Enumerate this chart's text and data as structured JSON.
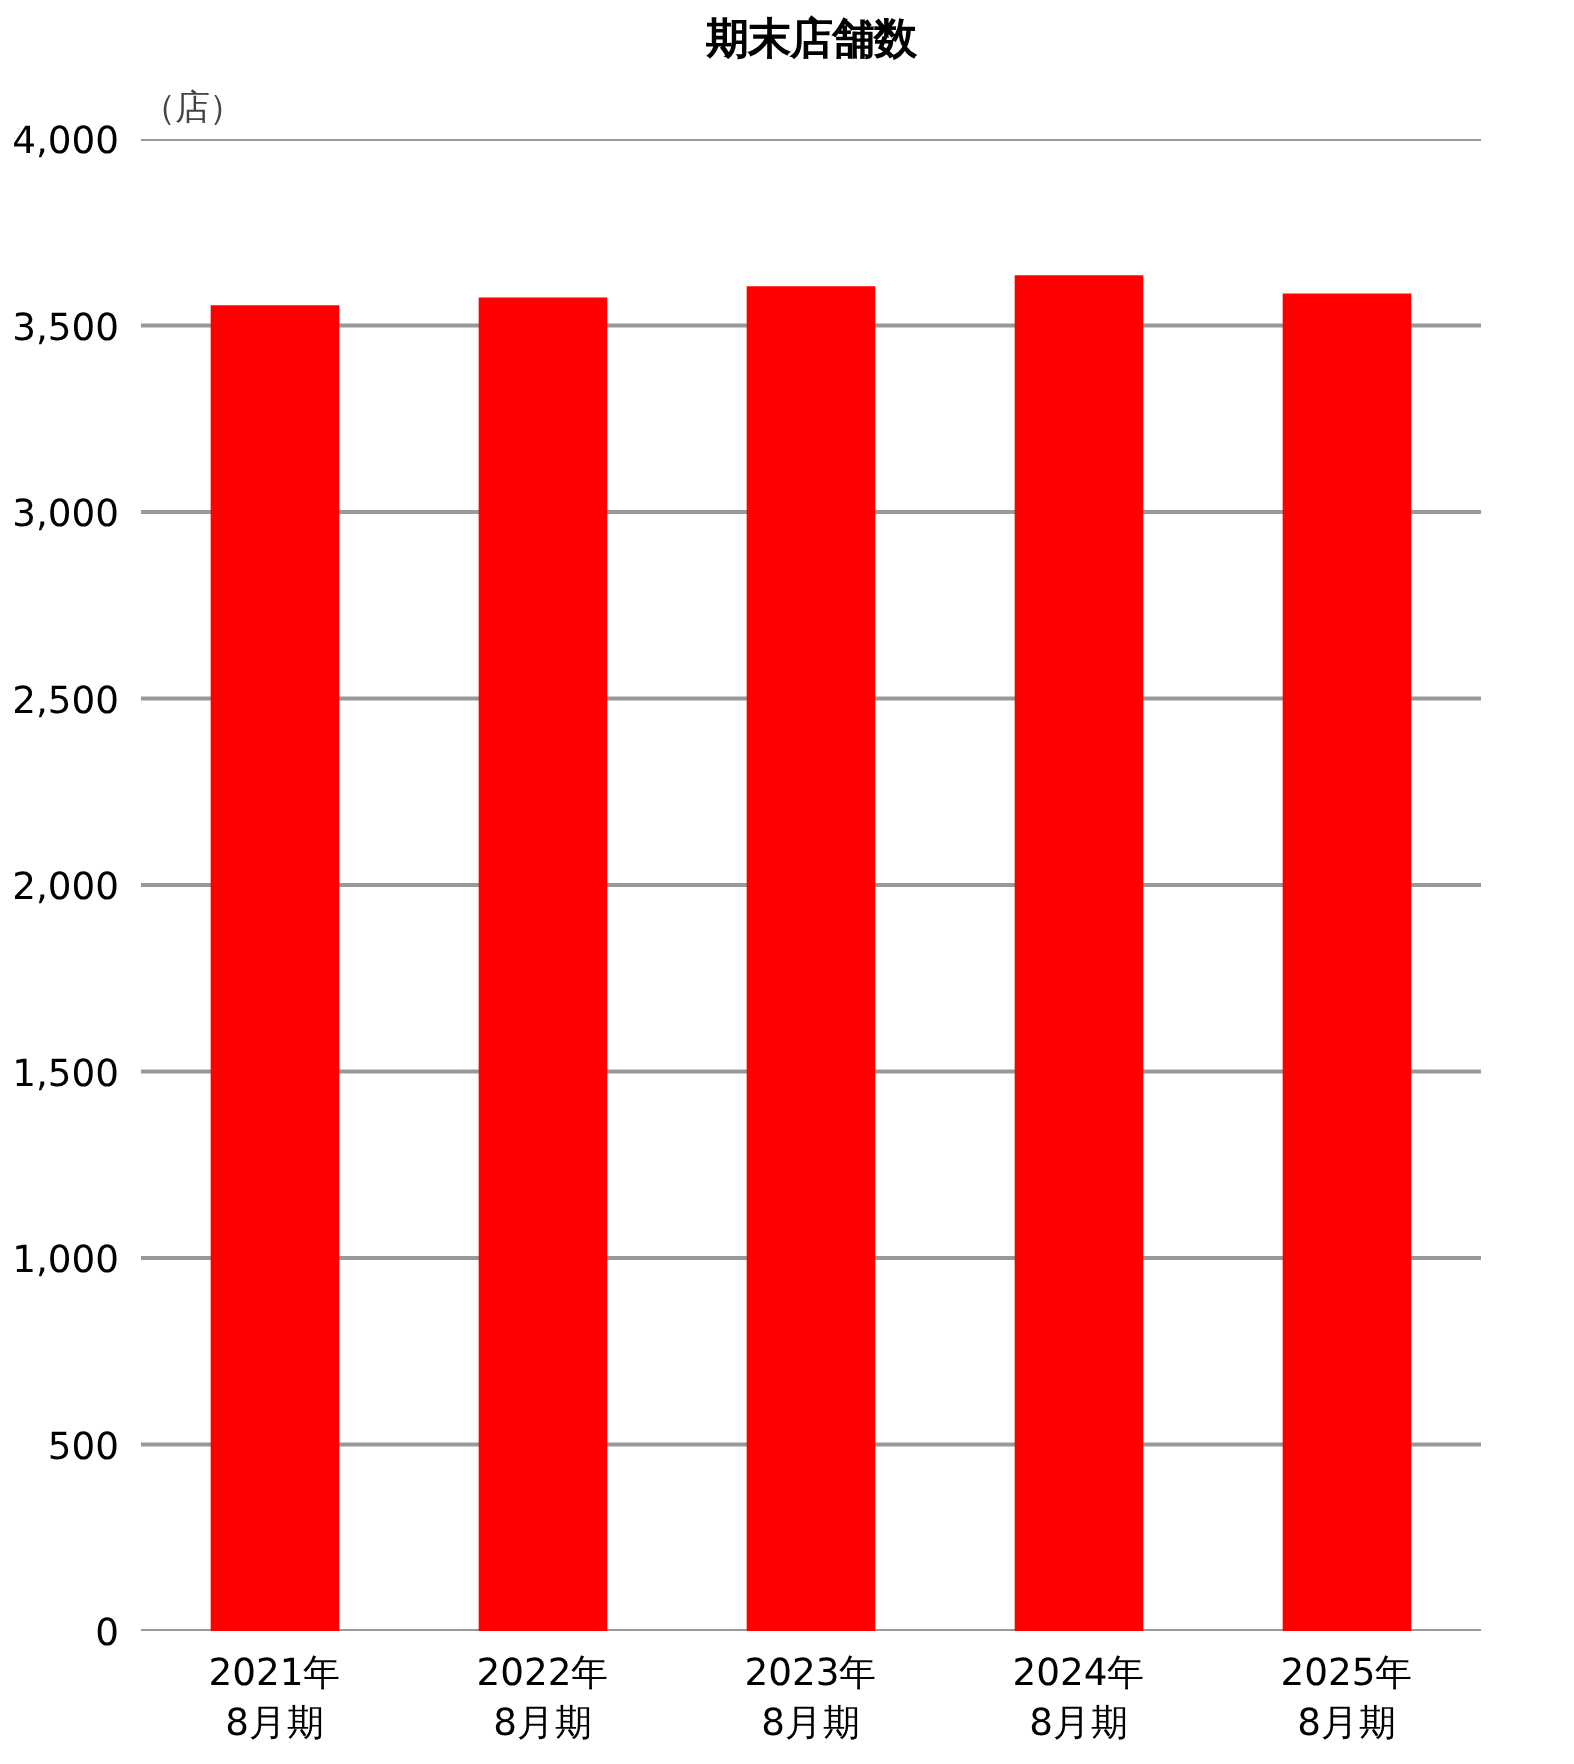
{
  "chart_data": {
    "type": "bar",
    "title": "期末店舗数",
    "ylabel": "（店）",
    "categories": [
      "2021年\n8月期",
      "2022年\n8月期",
      "2023年\n8月期",
      "2024年\n8月期",
      "2025年\n8月期"
    ],
    "values": [
      3554,
      3575,
      3605,
      3635,
      3586
    ],
    "color": "#ff0000",
    "ylim": [
      0,
      4000
    ],
    "yticks": [
      {
        "value": 0,
        "label": "0"
      },
      {
        "value": 500,
        "label": "500"
      },
      {
        "value": 1000,
        "label": "1,000"
      },
      {
        "value": 1500,
        "label": "1,500"
      },
      {
        "value": 2000,
        "label": "2,000"
      },
      {
        "value": 2500,
        "label": "2,500"
      },
      {
        "value": 3000,
        "label": "3,000"
      },
      {
        "value": 3500,
        "label": "3,500"
      },
      {
        "value": 4000,
        "label": "4,000"
      }
    ],
    "grid": "y"
  }
}
